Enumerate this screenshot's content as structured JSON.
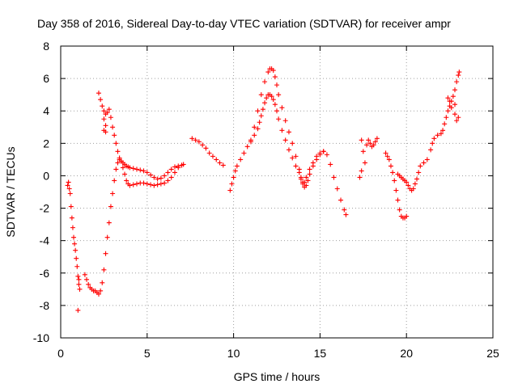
{
  "chart_data": {
    "type": "scatter",
    "title": "Day 358 of 2016, Sidereal Day-to-day VTEC variation (SDTVAR) for receiver ampr",
    "xlabel": "GPS time / hours",
    "ylabel": "SDTVAR / TECUs",
    "xlim": [
      0,
      25
    ],
    "ylim": [
      -10,
      8
    ],
    "xticks": [
      0,
      5,
      10,
      15,
      20,
      25
    ],
    "xtick_labels": [
      "0",
      "5",
      "10",
      "15",
      "20",
      "25"
    ],
    "yticks": [
      -10,
      -8,
      -6,
      -4,
      -2,
      0,
      2,
      4,
      6,
      8
    ],
    "ytick_labels": [
      "-10",
      "-8",
      "-6",
      "-4",
      "-2",
      "0",
      "2",
      "4",
      "6",
      "8"
    ],
    "grid": true,
    "marker": "plus",
    "color": "#ff0000",
    "series": [
      {
        "name": "SDTVAR",
        "segments": [
          [
            [
              0.4,
              -0.6
            ],
            [
              0.45,
              -0.4
            ],
            [
              0.5,
              -0.8
            ],
            [
              0.55,
              -1.1
            ],
            [
              0.6,
              -1.9
            ],
            [
              0.65,
              -2.6
            ],
            [
              0.7,
              -3.2
            ],
            [
              0.75,
              -3.8
            ],
            [
              0.8,
              -4.2
            ],
            [
              0.85,
              -4.6
            ],
            [
              0.9,
              -5.1
            ],
            [
              0.95,
              -5.6
            ],
            [
              1.0,
              -6.2
            ],
            [
              1.05,
              -6.7
            ],
            [
              1.1,
              -7.0
            ],
            [
              1.0,
              -8.3
            ],
            [
              1.05,
              -6.4
            ]
          ],
          [
            [
              1.4,
              -6.1
            ],
            [
              1.5,
              -6.4
            ],
            [
              1.6,
              -6.7
            ],
            [
              1.7,
              -6.9
            ],
            [
              1.8,
              -7.0
            ],
            [
              1.9,
              -7.1
            ],
            [
              2.0,
              -7.1
            ],
            [
              2.1,
              -7.2
            ],
            [
              2.2,
              -7.3
            ],
            [
              2.3,
              -7.1
            ],
            [
              2.4,
              -6.6
            ],
            [
              2.5,
              -5.8
            ],
            [
              2.6,
              -4.8
            ],
            [
              2.7,
              -3.8
            ],
            [
              2.8,
              -2.9
            ],
            [
              2.9,
              -1.9
            ],
            [
              3.0,
              -1.1
            ],
            [
              3.1,
              -0.3
            ],
            [
              3.2,
              0.4
            ],
            [
              3.3,
              0.8
            ],
            [
              3.4,
              1.0
            ],
            [
              3.5,
              0.9
            ],
            [
              3.6,
              0.5
            ],
            [
              3.7,
              0.1
            ],
            [
              3.8,
              -0.3
            ],
            [
              3.9,
              -0.5
            ],
            [
              4.0,
              -0.6
            ],
            [
              4.2,
              -0.55
            ],
            [
              4.4,
              -0.5
            ],
            [
              4.6,
              -0.45
            ],
            [
              4.8,
              -0.45
            ],
            [
              5.0,
              -0.5
            ],
            [
              5.2,
              -0.55
            ],
            [
              5.4,
              -0.6
            ],
            [
              5.6,
              -0.55
            ],
            [
              5.8,
              -0.5
            ],
            [
              6.0,
              -0.45
            ],
            [
              6.2,
              -0.3
            ],
            [
              6.4,
              -0.1
            ],
            [
              6.6,
              0.2
            ],
            [
              6.8,
              0.5
            ],
            [
              7.0,
              0.65
            ],
            [
              7.1,
              0.7
            ]
          ],
          [
            [
              2.2,
              5.1
            ],
            [
              2.3,
              4.7
            ],
            [
              2.4,
              4.3
            ],
            [
              2.5,
              4.0
            ],
            [
              2.6,
              3.8
            ],
            [
              2.7,
              3.9
            ],
            [
              2.8,
              4.1
            ],
            [
              2.9,
              3.6
            ],
            [
              3.0,
              3.0
            ],
            [
              3.1,
              2.5
            ],
            [
              3.2,
              2.0
            ],
            [
              3.3,
              1.5
            ],
            [
              3.4,
              1.1
            ],
            [
              3.5,
              0.9
            ],
            [
              3.6,
              0.8
            ],
            [
              3.7,
              0.7
            ],
            [
              3.8,
              0.6
            ],
            [
              3.9,
              0.55
            ],
            [
              4.0,
              0.5
            ],
            [
              4.2,
              0.45
            ],
            [
              4.4,
              0.4
            ],
            [
              4.6,
              0.35
            ],
            [
              4.8,
              0.3
            ],
            [
              5.0,
              0.2
            ],
            [
              5.2,
              0.05
            ],
            [
              5.4,
              -0.1
            ],
            [
              5.6,
              -0.2
            ],
            [
              5.8,
              -0.15
            ],
            [
              6.0,
              0.0
            ],
            [
              6.2,
              0.2
            ],
            [
              6.4,
              0.4
            ],
            [
              6.6,
              0.55
            ],
            [
              6.8,
              0.6
            ],
            [
              7.0,
              0.65
            ],
            [
              2.5,
              3.5
            ],
            [
              2.5,
              2.8
            ],
            [
              2.6,
              3.1
            ],
            [
              2.6,
              2.7
            ]
          ],
          [
            [
              7.6,
              2.3
            ],
            [
              7.8,
              2.2
            ],
            [
              8.0,
              2.1
            ],
            [
              8.2,
              1.9
            ],
            [
              8.4,
              1.7
            ],
            [
              8.6,
              1.4
            ],
            [
              8.8,
              1.2
            ],
            [
              9.0,
              1.0
            ],
            [
              9.2,
              0.8
            ],
            [
              9.4,
              0.65
            ]
          ],
          [
            [
              9.8,
              -0.9
            ],
            [
              9.9,
              -0.5
            ],
            [
              10.0,
              -0.1
            ],
            [
              10.1,
              0.3
            ],
            [
              10.2,
              0.6
            ],
            [
              10.4,
              1.0
            ],
            [
              10.6,
              1.4
            ],
            [
              10.8,
              1.8
            ],
            [
              11.0,
              2.2
            ],
            [
              11.2,
              2.5
            ],
            [
              11.4,
              2.9
            ],
            [
              11.5,
              3.3
            ],
            [
              11.6,
              3.7
            ],
            [
              11.7,
              4.1
            ],
            [
              11.8,
              4.5
            ],
            [
              11.9,
              4.8
            ],
            [
              12.0,
              5.0
            ],
            [
              12.1,
              5.0
            ],
            [
              12.2,
              4.9
            ],
            [
              12.3,
              4.7
            ],
            [
              12.4,
              4.4
            ],
            [
              12.5,
              4.0
            ],
            [
              12.6,
              3.5
            ],
            [
              12.8,
              2.8
            ],
            [
              13.0,
              2.2
            ],
            [
              13.2,
              1.6
            ],
            [
              13.4,
              1.1
            ],
            [
              13.6,
              0.6
            ],
            [
              13.8,
              0.2
            ],
            [
              13.9,
              -0.1
            ],
            [
              14.0,
              -0.4
            ],
            [
              14.1,
              -0.7
            ],
            [
              14.2,
              -0.6
            ],
            [
              14.3,
              -0.3
            ],
            [
              14.4,
              0.1
            ],
            [
              14.6,
              0.6
            ],
            [
              14.8,
              1.0
            ],
            [
              15.0,
              1.3
            ],
            [
              15.2,
              1.5
            ],
            [
              15.4,
              1.3
            ],
            [
              15.6,
              0.7
            ],
            [
              15.8,
              -0.1
            ],
            [
              16.0,
              -0.8
            ],
            [
              16.2,
              -1.5
            ],
            [
              16.4,
              -2.1
            ],
            [
              16.5,
              -2.4
            ]
          ],
          [
            [
              11.0,
              2.1
            ],
            [
              11.2,
              3.0
            ],
            [
              11.4,
              4.0
            ],
            [
              11.6,
              5.0
            ],
            [
              11.8,
              5.8
            ],
            [
              12.0,
              6.4
            ],
            [
              12.1,
              6.6
            ],
            [
              12.2,
              6.6
            ],
            [
              12.3,
              6.5
            ],
            [
              12.4,
              6.1
            ],
            [
              12.5,
              5.6
            ],
            [
              12.6,
              5.0
            ],
            [
              12.8,
              4.2
            ],
            [
              13.0,
              3.4
            ],
            [
              13.2,
              2.7
            ],
            [
              13.4,
              2.0
            ],
            [
              13.6,
              1.2
            ],
            [
              13.8,
              0.4
            ],
            [
              13.9,
              -0.2
            ],
            [
              14.0,
              -0.5
            ],
            [
              14.1,
              -0.4
            ],
            [
              14.2,
              -0.1
            ],
            [
              14.4,
              0.4
            ],
            [
              14.6,
              0.8
            ],
            [
              14.8,
              1.2
            ],
            [
              15.0,
              1.4
            ],
            [
              15.2,
              1.5
            ]
          ],
          [
            [
              17.4,
              2.2
            ],
            [
              17.5,
              1.5
            ],
            [
              17.6,
              0.8
            ],
            [
              17.7,
              1.9
            ],
            [
              17.8,
              2.2
            ],
            [
              17.9,
              2.0
            ],
            [
              18.0,
              1.8
            ],
            [
              18.1,
              1.9
            ],
            [
              18.2,
              2.1
            ],
            [
              18.3,
              2.3
            ],
            [
              17.3,
              -0.1
            ],
            [
              17.4,
              0.3
            ]
          ],
          [
            [
              18.8,
              1.4
            ],
            [
              18.9,
              1.2
            ],
            [
              19.0,
              1.0
            ],
            [
              19.1,
              0.6
            ],
            [
              19.2,
              0.2
            ],
            [
              19.3,
              -0.3
            ],
            [
              19.4,
              -0.9
            ],
            [
              19.5,
              -1.5
            ],
            [
              19.6,
              -2.1
            ],
            [
              19.7,
              -2.5
            ],
            [
              19.8,
              -2.6
            ],
            [
              19.9,
              -2.6
            ],
            [
              20.0,
              -2.5
            ],
            [
              19.5,
              0.1
            ],
            [
              19.6,
              0.0
            ],
            [
              19.7,
              -0.1
            ],
            [
              19.8,
              -0.2
            ],
            [
              19.9,
              -0.3
            ],
            [
              20.0,
              -0.4
            ],
            [
              20.1,
              -0.6
            ],
            [
              20.2,
              -0.8
            ],
            [
              20.3,
              -0.9
            ],
            [
              20.4,
              -0.8
            ],
            [
              20.5,
              -0.5
            ],
            [
              20.6,
              -0.2
            ],
            [
              20.7,
              0.2
            ],
            [
              20.8,
              0.6
            ],
            [
              21.0,
              0.8
            ],
            [
              21.2,
              1.0
            ],
            [
              21.4,
              1.6
            ],
            [
              21.5,
              2.0
            ],
            [
              21.6,
              2.3
            ],
            [
              21.8,
              2.5
            ],
            [
              22.0,
              2.6
            ],
            [
              22.1,
              2.8
            ],
            [
              22.2,
              3.2
            ],
            [
              22.3,
              3.6
            ],
            [
              22.4,
              4.0
            ],
            [
              22.5,
              4.3
            ],
            [
              22.6,
              4.6
            ],
            [
              22.7,
              4.9
            ],
            [
              22.8,
              5.3
            ],
            [
              22.9,
              5.8
            ],
            [
              23.0,
              6.2
            ],
            [
              23.05,
              6.4
            ],
            [
              22.4,
              4.8
            ],
            [
              22.6,
              4.2
            ],
            [
              22.8,
              3.8
            ],
            [
              22.9,
              3.4
            ],
            [
              22.5,
              4.6
            ],
            [
              22.8,
              4.4
            ],
            [
              23.0,
              3.6
            ]
          ]
        ]
      }
    ]
  }
}
